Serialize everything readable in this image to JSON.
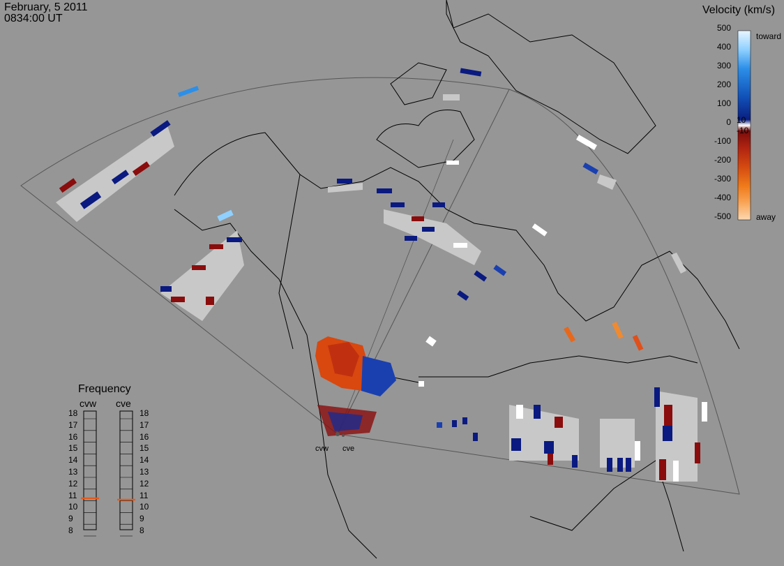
{
  "header": {
    "date": "February, 5 2011",
    "time": "0834:00 UT"
  },
  "colorbar": {
    "title": "Velocity (km/s)",
    "ticks": [
      "500",
      "400",
      "300",
      "200",
      "100",
      "10",
      "0",
      "-10",
      "-100",
      "-200",
      "-300",
      "-400",
      "-500"
    ],
    "toward_label": "toward",
    "away_label": "away",
    "gradient": [
      "#e8f6ff",
      "#8fd0ff",
      "#2c8fe8",
      "#1151b8",
      "#0a1f80",
      "#ffffff",
      "#7a0c0c",
      "#b02410",
      "#d44a10",
      "#ef7a1a",
      "#f8a050",
      "#fcd8b0"
    ]
  },
  "frequency": {
    "title": "Frequency",
    "radars": [
      {
        "name": "cvw",
        "value": 11
      },
      {
        "name": "cve",
        "value": 11
      }
    ],
    "scale": [
      "18",
      "17",
      "16",
      "15",
      "14",
      "13",
      "12",
      "11",
      "10",
      "9",
      "8"
    ],
    "marker_color": "#e85a1a"
  },
  "radar_sites": [
    "cvw",
    "cve"
  ],
  "colors": {
    "background": "#969696",
    "ground_scatter": "#c8c8c8",
    "toward_dark": "#0a1a80",
    "away_dark": "#8a0c0c",
    "orange": "#e8681a"
  }
}
